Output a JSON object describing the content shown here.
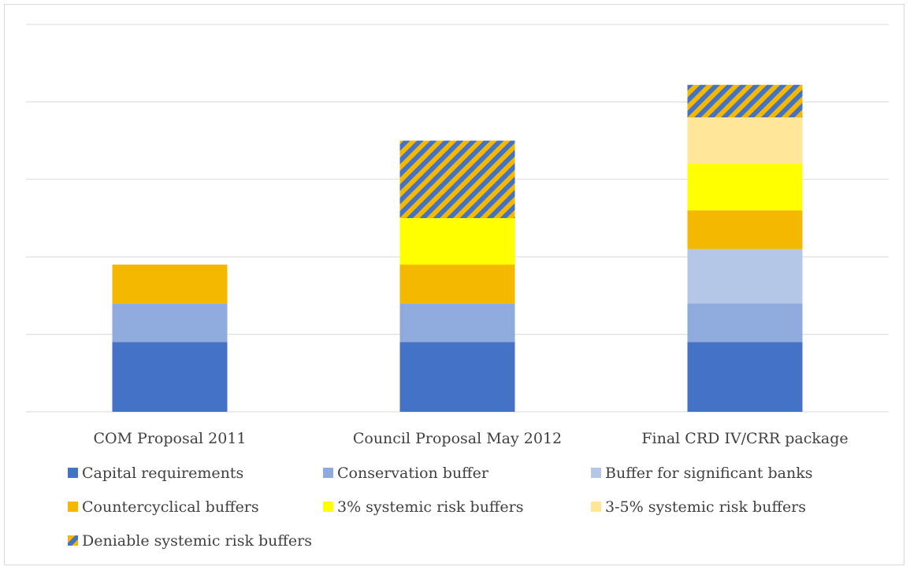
{
  "chart_data": {
    "type": "bar",
    "stacked": true,
    "categories": [
      "COM Proposal 2011",
      "Council Proposal May 2012",
      "Final CRD IV/CRR package"
    ],
    "ylim": [
      0,
      5
    ],
    "grid": true,
    "legend_position": "bottom",
    "series": [
      {
        "name": "Capital requirements",
        "color": "#4472c4",
        "pattern": "solid",
        "values": [
          0.9,
          0.9,
          0.9
        ]
      },
      {
        "name": "Conservation buffer",
        "color": "#8faadc",
        "pattern": "solid",
        "values": [
          0.5,
          0.5,
          0.5
        ]
      },
      {
        "name": "Buffer for significant banks",
        "color": "#b4c7e7",
        "pattern": "solid",
        "values": [
          0,
          0,
          0.7
        ]
      },
      {
        "name": "Countercyclical buffers",
        "color": "#f5b800",
        "pattern": "solid",
        "values": [
          0.5,
          0.5,
          0.5
        ]
      },
      {
        "name": "3% systemic risk buffers",
        "color": "#ffff00",
        "pattern": "solid",
        "values": [
          0,
          0.6,
          0.6
        ]
      },
      {
        "name": "3-5% systemic risk buffers",
        "color": "#ffe699",
        "pattern": "solid",
        "values": [
          0,
          0,
          0.6
        ]
      },
      {
        "name": "Deniable systemic risk buffers",
        "color": "#4472c4",
        "color2": "#f5b800",
        "pattern": "diagonal-stripes",
        "values": [
          0,
          1.0,
          0.42
        ]
      }
    ]
  }
}
